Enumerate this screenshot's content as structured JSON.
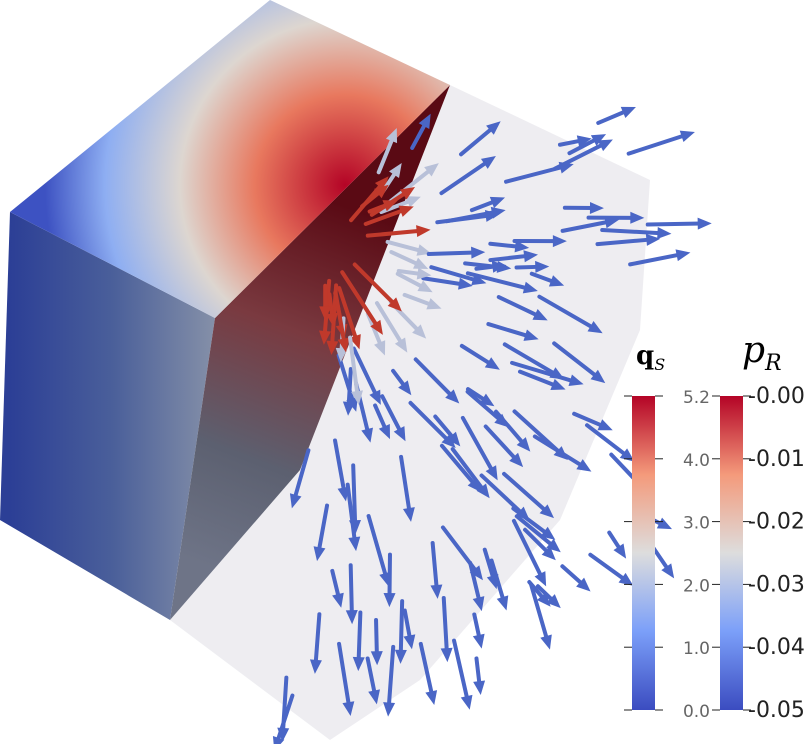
{
  "colorbars": [
    {
      "title": "q",
      "subscript": "S",
      "ticks": [
        "5.2",
        "4.0",
        "3.0",
        "2.0",
        "1.0",
        "0.0"
      ]
    },
    {
      "title": "p",
      "subscript": "R",
      "ticks": [
        "-0.00",
        "-0.01",
        "-0.02",
        "-0.03",
        "-0.04",
        "-0.05"
      ]
    }
  ]
}
